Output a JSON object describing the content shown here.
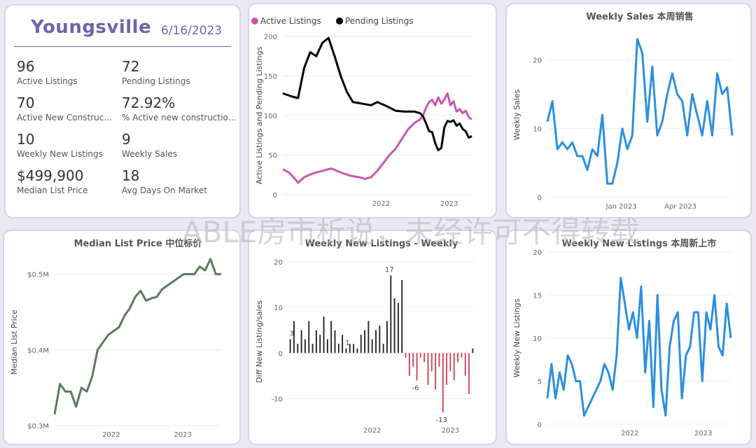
{
  "kpi": {
    "city": "Youngsville",
    "date": "6/16/2023",
    "items": [
      {
        "value": "96",
        "label": "Active Listings"
      },
      {
        "value": "72",
        "label": "Pending Listings"
      },
      {
        "value": "70",
        "label": "Active New Constructi..."
      },
      {
        "value": "72.92%",
        "label": "% Active new constructions"
      },
      {
        "value": "10",
        "label": "Weekly New Listings"
      },
      {
        "value": "9",
        "label": "Weekly Sales"
      },
      {
        "value": "$499,900",
        "label": "Median List Price"
      },
      {
        "value": "18",
        "label": "Avg Days On Market"
      }
    ]
  },
  "watermark": "ABLE房市析说，未经许可不得转载",
  "colors": {
    "accent": "#6a66a8",
    "active": "#cc55b0",
    "pending": "#000000",
    "blue": "#2b8fe0",
    "green": "#5a7a5e",
    "neg": "#cc4455"
  },
  "chart_data": [
    {
      "id": "listings",
      "type": "line",
      "title": "",
      "legend": "top-left",
      "ylabel": "Active Listings and Pending Listings",
      "ylim": [
        0,
        200
      ],
      "yticks": [
        "0",
        "50",
        "100",
        "150",
        "200"
      ],
      "xticks": [
        "2022",
        "2023"
      ],
      "series": [
        {
          "name": "Active Listings",
          "color": "#cc55b0",
          "points": [
            [
              0,
              32
            ],
            [
              2,
              28
            ],
            [
              4,
              20
            ],
            [
              5,
              15
            ],
            [
              7,
              22
            ],
            [
              10,
              27
            ],
            [
              13,
              30
            ],
            [
              16,
              33
            ],
            [
              19,
              28
            ],
            [
              22,
              24
            ],
            [
              25,
              22
            ],
            [
              27,
              20
            ],
            [
              29,
              22
            ],
            [
              31,
              30
            ],
            [
              33,
              40
            ],
            [
              35,
              50
            ],
            [
              37,
              58
            ],
            [
              39,
              70
            ],
            [
              41,
              82
            ],
            [
              43,
              90
            ],
            [
              45,
              95
            ],
            [
              46,
              100
            ],
            [
              47,
              110
            ],
            [
              48,
              117
            ],
            [
              49,
              120
            ],
            [
              50,
              113
            ],
            [
              51,
              123
            ],
            [
              52,
              115
            ],
            [
              53,
              120
            ],
            [
              54,
              128
            ],
            [
              55,
              113
            ],
            [
              56,
              118
            ],
            [
              57,
              105
            ],
            [
              58,
              108
            ],
            [
              59,
              103
            ],
            [
              60,
              106
            ],
            [
              61,
              98
            ],
            [
              62,
              95
            ]
          ]
        },
        {
          "name": "Pending Listings",
          "color": "#000000",
          "points": [
            [
              0,
              128
            ],
            [
              3,
              124
            ],
            [
              5,
              122
            ],
            [
              7,
              160
            ],
            [
              9,
              180
            ],
            [
              11,
              175
            ],
            [
              13,
              192
            ],
            [
              15,
              198
            ],
            [
              17,
              175
            ],
            [
              19,
              150
            ],
            [
              21,
              130
            ],
            [
              23,
              117
            ],
            [
              26,
              115
            ],
            [
              29,
              113
            ],
            [
              31,
              117
            ],
            [
              34,
              112
            ],
            [
              37,
              106
            ],
            [
              40,
              105
            ],
            [
              43,
              105
            ],
            [
              45,
              103
            ],
            [
              46,
              99
            ],
            [
              47,
              90
            ],
            [
              48,
              80
            ],
            [
              49,
              79
            ],
            [
              50,
              65
            ],
            [
              51,
              56
            ],
            [
              52,
              59
            ],
            [
              53,
              85
            ],
            [
              54,
              93
            ],
            [
              55,
              92
            ],
            [
              56,
              94
            ],
            [
              57,
              87
            ],
            [
              58,
              90
            ],
            [
              59,
              83
            ],
            [
              60,
              80
            ],
            [
              61,
              72
            ],
            [
              62,
              74
            ]
          ]
        }
      ]
    },
    {
      "id": "weekly_sales",
      "type": "line",
      "title": "Weekly Sales 本周销售",
      "ylabel": "Weekly Sales",
      "ylim": [
        0,
        24
      ],
      "yticks": [
        "0",
        "10",
        "20"
      ],
      "xticks": [
        "Jan 2023",
        "Apr 2023"
      ],
      "series": [
        {
          "name": "",
          "color": "#2b8fe0",
          "values": [
            11,
            14,
            7,
            8,
            7,
            8,
            6,
            6,
            4,
            7,
            6,
            12,
            2,
            2,
            5,
            10,
            7,
            9,
            23,
            21,
            11,
            19,
            9,
            11,
            15,
            18,
            15,
            14,
            9,
            15,
            12,
            9,
            14,
            9,
            18,
            15,
            16,
            9
          ]
        }
      ]
    },
    {
      "id": "median_price",
      "type": "line",
      "title": "Median List Price  中位标价",
      "ylabel": "Median List Price",
      "ylim": [
        0.3,
        0.52
      ],
      "yticks": [
        "$0.3M",
        "$0.4M",
        "$0.5M"
      ],
      "xticks": [
        "2022",
        "2023"
      ],
      "series": [
        {
          "name": "",
          "color": "#5a7a5e",
          "values": [
            0.315,
            0.355,
            0.345,
            0.345,
            0.325,
            0.35,
            0.345,
            0.365,
            0.4,
            0.41,
            0.42,
            0.425,
            0.43,
            0.445,
            0.455,
            0.47,
            0.478,
            0.465,
            0.468,
            0.47,
            0.48,
            0.485,
            0.49,
            0.495,
            0.5,
            0.5,
            0.5,
            0.51,
            0.505,
            0.52,
            0.5,
            0.5
          ]
        }
      ]
    },
    {
      "id": "diff_listings",
      "type": "bar",
      "title": "Weekly New Listings - Weekly",
      "ylabel": "Diff New Listing/sales",
      "ylim": [
        -15,
        20
      ],
      "yticks": [
        "-10",
        "0",
        "10",
        "20"
      ],
      "xticks": [
        "2022",
        "2023"
      ],
      "data_labels": {
        "3": "3",
        "17": "17",
        "-6": "-6",
        "-13": "-13",
        "1": "1"
      },
      "values": [
        3,
        7,
        2,
        5,
        3,
        7,
        2,
        5,
        4,
        8,
        3,
        7,
        5,
        2,
        4,
        1,
        2,
        2,
        1,
        4,
        5,
        7,
        3,
        5,
        6,
        2,
        7,
        17,
        12,
        11,
        16,
        -1,
        -5,
        -3,
        -6,
        -1,
        -2,
        -7,
        -4,
        -8,
        -3,
        -13,
        -7,
        -4,
        -6,
        -2,
        -1,
        -5,
        -9,
        1
      ]
    },
    {
      "id": "weekly_new_listings",
      "type": "line",
      "title": "Weekly New Listings  本周新上市",
      "ylabel": "Weekly New Listings",
      "ylim": [
        0,
        20
      ],
      "yticks": [
        "0",
        "5",
        "10",
        "15",
        "20"
      ],
      "xticks": [
        "2022",
        "2023"
      ],
      "series": [
        {
          "name": "",
          "color": "#2b8fe0",
          "values": [
            3,
            7,
            3,
            6,
            4,
            8,
            7,
            5,
            5,
            1,
            2,
            3,
            4,
            5,
            7,
            6,
            4,
            8,
            17,
            14,
            11,
            13,
            10,
            16,
            6,
            12,
            2,
            15,
            4,
            1,
            9,
            12,
            13,
            3,
            8,
            9,
            13,
            13,
            5,
            13,
            11,
            15,
            9,
            8,
            14,
            10
          ]
        }
      ]
    }
  ]
}
